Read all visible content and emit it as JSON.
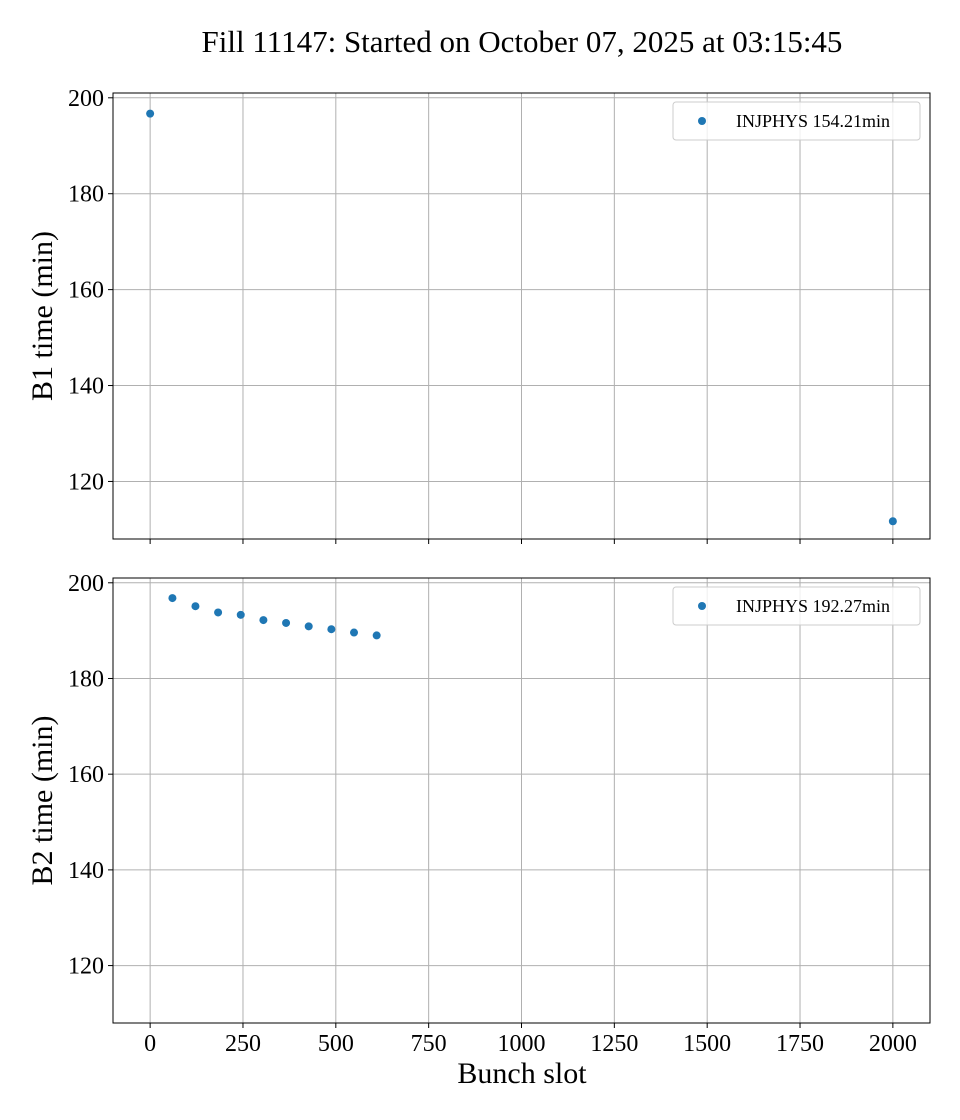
{
  "chart_data": {
    "type": "scatter",
    "title": "Fill 11147: Started on October 07, 2025 at 03:15:45",
    "xlabel": "Bunch slot",
    "xlim": [
      -100,
      2100
    ],
    "x_ticks": [
      0,
      250,
      500,
      750,
      1000,
      1250,
      1500,
      1750,
      2000
    ],
    "x_tick_labels": [
      "0",
      "250",
      "500",
      "750",
      "1000",
      "1250",
      "1500",
      "1750",
      "2000"
    ],
    "grid": true,
    "marker_color": "#1f77b4",
    "panels": [
      {
        "ylabel": "B1 time (min)",
        "ylim": [
          108,
          201
        ],
        "y_ticks": [
          120,
          140,
          160,
          180,
          200
        ],
        "y_tick_labels": [
          "120",
          "140",
          "160",
          "180",
          "200"
        ],
        "legend_position": "top-right",
        "series": [
          {
            "name": "INJPHYS 154.21min",
            "points": [
              [
                0,
                196.7
              ],
              [
                2000,
                111.7
              ]
            ]
          }
        ]
      },
      {
        "ylabel": "B2 time (min)",
        "ylim": [
          108,
          201
        ],
        "y_ticks": [
          120,
          140,
          160,
          180,
          200
        ],
        "y_tick_labels": [
          "120",
          "140",
          "160",
          "180",
          "200"
        ],
        "legend_position": "top-right",
        "series": [
          {
            "name": "INJPHYS 192.27min",
            "points": [
              [
                60,
                196.8
              ],
              [
                122,
                195.1
              ],
              [
                183,
                193.8
              ],
              [
                244,
                193.3
              ],
              [
                305,
                192.2
              ],
              [
                366,
                191.6
              ],
              [
                427,
                190.9
              ],
              [
                488,
                190.3
              ],
              [
                549,
                189.6
              ],
              [
                610,
                189.0
              ]
            ]
          }
        ]
      }
    ]
  }
}
